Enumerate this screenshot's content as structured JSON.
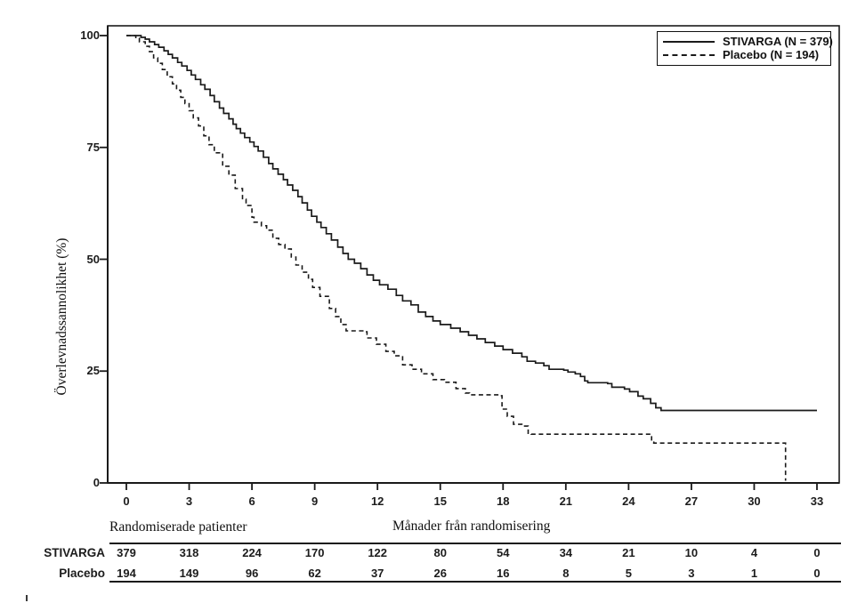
{
  "chart_data": {
    "type": "line",
    "chart_style": "kaplan-meier-step",
    "title": "",
    "xlabel": "Månader från randomisering",
    "ylabel": "Överlevnadssannolikhet (%)",
    "xlim": [
      0,
      33
    ],
    "ylim": [
      0,
      100
    ],
    "grid": false,
    "x_ticks": [
      0,
      3,
      6,
      9,
      12,
      15,
      18,
      21,
      24,
      27,
      30,
      33
    ],
    "y_ticks": [
      100,
      75,
      50,
      25,
      0
    ],
    "legend_position": "top-right",
    "legend_labels": [
      "STIVARGA (N = 379)",
      "Placebo (N = 194)"
    ],
    "line_color": "#1a1a1a",
    "series": [
      {
        "name": "STIVARGA",
        "n": 379,
        "style": "solid",
        "points": [
          [
            0,
            100
          ],
          [
            0.55,
            100
          ],
          [
            0.7,
            99.6
          ],
          [
            0.9,
            99.2
          ],
          [
            1.1,
            98.6
          ],
          [
            1.35,
            98
          ],
          [
            1.55,
            97.4
          ],
          [
            1.8,
            96.6
          ],
          [
            2.0,
            95.8
          ],
          [
            2.2,
            95.0
          ],
          [
            2.45,
            94.0
          ],
          [
            2.65,
            93.2
          ],
          [
            2.9,
            92.2
          ],
          [
            3.1,
            91.2
          ],
          [
            3.3,
            90.2
          ],
          [
            3.55,
            89.0
          ],
          [
            3.75,
            88.0
          ],
          [
            4.0,
            86.6
          ],
          [
            4.2,
            85.2
          ],
          [
            4.45,
            83.8
          ],
          [
            4.65,
            82.6
          ],
          [
            4.9,
            81.4
          ],
          [
            5.1,
            80.2
          ],
          [
            5.25,
            79.2
          ],
          [
            5.45,
            78.2
          ],
          [
            5.65,
            77.2
          ],
          [
            5.9,
            76.2
          ],
          [
            6.1,
            75.2
          ],
          [
            6.3,
            74.2
          ],
          [
            6.55,
            72.8
          ],
          [
            6.8,
            71.4
          ],
          [
            7.0,
            70.2
          ],
          [
            7.25,
            69.0
          ],
          [
            7.5,
            67.8
          ],
          [
            7.7,
            66.6
          ],
          [
            7.95,
            65.4
          ],
          [
            8.2,
            64.0
          ],
          [
            8.4,
            62.6
          ],
          [
            8.65,
            61.0
          ],
          [
            8.85,
            59.6
          ],
          [
            9.1,
            58.3
          ],
          [
            9.3,
            57.1
          ],
          [
            9.55,
            55.7
          ],
          [
            9.8,
            54.3
          ],
          [
            10.1,
            52.7
          ],
          [
            10.35,
            51.3
          ],
          [
            10.6,
            50.0
          ],
          [
            10.9,
            49.1
          ],
          [
            11.2,
            47.9
          ],
          [
            11.5,
            46.5
          ],
          [
            11.8,
            45.3
          ],
          [
            12.1,
            44.3
          ],
          [
            12.5,
            43.3
          ],
          [
            12.9,
            41.9
          ],
          [
            13.2,
            40.7
          ],
          [
            13.6,
            39.8
          ],
          [
            13.95,
            38.2
          ],
          [
            14.3,
            37.2
          ],
          [
            14.65,
            36.2
          ],
          [
            15.0,
            35.4
          ],
          [
            15.5,
            34.6
          ],
          [
            15.95,
            33.8
          ],
          [
            16.35,
            33.0
          ],
          [
            16.75,
            32.2
          ],
          [
            17.15,
            31.4
          ],
          [
            17.6,
            30.6
          ],
          [
            18.0,
            29.8
          ],
          [
            18.45,
            29.0
          ],
          [
            18.9,
            28.2
          ],
          [
            19.15,
            27.2
          ],
          [
            19.55,
            26.8
          ],
          [
            19.95,
            26.2
          ],
          [
            20.2,
            25.4
          ],
          [
            20.9,
            25.2
          ],
          [
            21.1,
            24.8
          ],
          [
            21.45,
            24.4
          ],
          [
            21.7,
            23.8
          ],
          [
            21.9,
            22.8
          ],
          [
            22.05,
            22.4
          ],
          [
            23.0,
            22.2
          ],
          [
            23.2,
            21.4
          ],
          [
            23.8,
            21.0
          ],
          [
            24.05,
            20.4
          ],
          [
            24.45,
            19.4
          ],
          [
            24.7,
            18.8
          ],
          [
            25.05,
            17.8
          ],
          [
            25.3,
            16.8
          ],
          [
            25.55,
            16.2
          ],
          [
            33.0,
            16.2
          ]
        ]
      },
      {
        "name": "Placebo",
        "n": 194,
        "style": "dashed",
        "points": [
          [
            0,
            100
          ],
          [
            0.45,
            99.4
          ],
          [
            0.62,
            98.6
          ],
          [
            0.9,
            97.6
          ],
          [
            1.1,
            96.4
          ],
          [
            1.3,
            95.0
          ],
          [
            1.5,
            93.8
          ],
          [
            1.72,
            92.4
          ],
          [
            1.95,
            90.8
          ],
          [
            2.2,
            89.2
          ],
          [
            2.4,
            87.8
          ],
          [
            2.6,
            86.2
          ],
          [
            2.8,
            84.8
          ],
          [
            3.0,
            83.2
          ],
          [
            3.2,
            81.6
          ],
          [
            3.45,
            79.8
          ],
          [
            3.7,
            77.6
          ],
          [
            3.95,
            75.6
          ],
          [
            4.2,
            73.8
          ],
          [
            4.6,
            70.8
          ],
          [
            4.9,
            68.8
          ],
          [
            5.2,
            65.8
          ],
          [
            5.55,
            63.4
          ],
          [
            5.72,
            62.0
          ],
          [
            6.0,
            59.4
          ],
          [
            6.1,
            58.3
          ],
          [
            6.45,
            57.5
          ],
          [
            6.7,
            56.5
          ],
          [
            7.0,
            54.7
          ],
          [
            7.28,
            53.3
          ],
          [
            7.58,
            52.3
          ],
          [
            7.88,
            50.5
          ],
          [
            8.1,
            48.7
          ],
          [
            8.4,
            47.1
          ],
          [
            8.7,
            45.5
          ],
          [
            8.9,
            43.7
          ],
          [
            9.25,
            41.7
          ],
          [
            9.7,
            39.0
          ],
          [
            10.0,
            37.2
          ],
          [
            10.25,
            35.4
          ],
          [
            10.5,
            34.0
          ],
          [
            11.3,
            33.8
          ],
          [
            11.5,
            32.4
          ],
          [
            11.95,
            31.0
          ],
          [
            12.4,
            29.4
          ],
          [
            12.8,
            28.4
          ],
          [
            13.2,
            26.4
          ],
          [
            13.65,
            25.4
          ],
          [
            14.1,
            24.4
          ],
          [
            14.65,
            23.1
          ],
          [
            15.2,
            22.5
          ],
          [
            15.75,
            21.1
          ],
          [
            16.2,
            20.1
          ],
          [
            16.4,
            19.7
          ],
          [
            17.85,
            19.5
          ],
          [
            17.95,
            16.5
          ],
          [
            18.2,
            14.9
          ],
          [
            18.5,
            13.1
          ],
          [
            18.9,
            12.7
          ],
          [
            19.2,
            11.1
          ],
          [
            19.35,
            10.9
          ],
          [
            25.05,
            10.9
          ],
          [
            25.1,
            9.1
          ],
          [
            25.2,
            8.9
          ],
          [
            31.5,
            8.9
          ],
          [
            31.5,
            0.5
          ]
        ]
      }
    ],
    "risk_table": {
      "label": "Randomiserade patienter",
      "months": [
        0,
        3,
        6,
        9,
        12,
        15,
        18,
        21,
        24,
        27,
        30,
        33
      ],
      "rows": [
        {
          "name": "STIVARGA",
          "values": [
            379,
            318,
            224,
            170,
            122,
            80,
            54,
            34,
            21,
            10,
            4,
            0
          ]
        },
        {
          "name": "Placebo",
          "values": [
            194,
            149,
            96,
            62,
            37,
            26,
            16,
            8,
            5,
            3,
            1,
            0
          ]
        }
      ]
    }
  }
}
